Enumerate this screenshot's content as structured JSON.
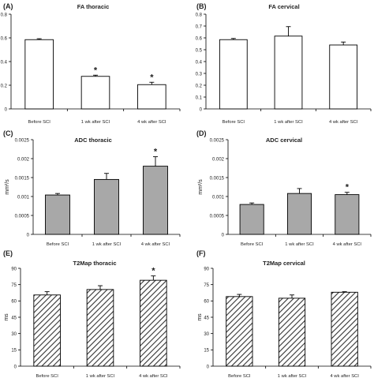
{
  "chart_data": [
    {
      "type": "bar",
      "panel_label": "(A)",
      "title": "FA thoracic",
      "ylabel": "",
      "categories": [
        "Before SCI",
        "1 wk after SCI",
        "4 wk after SCI"
      ],
      "values": [
        0.585,
        0.275,
        0.205
      ],
      "errors": [
        0.008,
        0.01,
        0.02
      ],
      "significance": [
        "",
        "*",
        "*"
      ],
      "ylim": [
        0,
        0.8
      ],
      "yticks": [
        "0",
        "0.2",
        "0.4",
        "0.6",
        "0.8"
      ],
      "fill": "white"
    },
    {
      "type": "bar",
      "panel_label": "(B)",
      "title": "FA cervical",
      "ylabel": "",
      "categories": [
        "Before SCI",
        "1 wk after SCI",
        "4 wk after SCI"
      ],
      "values": [
        0.585,
        0.615,
        0.54
      ],
      "errors": [
        0.01,
        0.08,
        0.025
      ],
      "significance": [
        "",
        "",
        ""
      ],
      "ylim": [
        0,
        0.8
      ],
      "yticks": [
        "0",
        "0.1",
        "0.2",
        "0.3",
        "0.4",
        "0.5",
        "0.6",
        "0.7",
        "0.8"
      ],
      "fill": "white"
    },
    {
      "type": "bar",
      "panel_label": "(C)",
      "title": "ADC thoracic",
      "ylabel": "mm²/s",
      "categories": [
        "Before SCI",
        "1 wk after SCI",
        "4 wk after SCI"
      ],
      "values": [
        0.00104,
        0.00145,
        0.0018
      ],
      "errors": [
        4e-05,
        0.00016,
        0.00025
      ],
      "significance": [
        "",
        "",
        "*"
      ],
      "ylim": [
        0,
        0.0025
      ],
      "yticks": [
        "0",
        "0.0005",
        "0.001",
        "0.0015",
        "0.002",
        "0.0025"
      ],
      "fill": "gray"
    },
    {
      "type": "bar",
      "panel_label": "(D)",
      "title": "ADC cervical",
      "ylabel": "mm²/s",
      "categories": [
        "Before SCI",
        "1 wk after SCI",
        "4 wk after SCI"
      ],
      "values": [
        0.00079,
        0.00108,
        0.00105
      ],
      "errors": [
        4e-05,
        0.00013,
        6e-05
      ],
      "significance": [
        "",
        "",
        "*"
      ],
      "ylim": [
        0,
        0.0025
      ],
      "yticks": [
        "0",
        "0.0005",
        "0.001",
        "0.0015",
        "0.002",
        "0.0025"
      ],
      "fill": "gray"
    },
    {
      "type": "bar",
      "panel_label": "(E)",
      "title": "T2Map thoracic",
      "ylabel": "ms",
      "categories": [
        "Before SCI",
        "1 wk after SCI",
        "4 wk after SCI"
      ],
      "values": [
        65.5,
        70.5,
        79
      ],
      "errors": [
        3,
        3.5,
        4
      ],
      "significance": [
        "",
        "",
        "*"
      ],
      "ylim": [
        0,
        90
      ],
      "yticks": [
        "0",
        "15",
        "30",
        "45",
        "60",
        "75",
        "90"
      ],
      "fill": "hatch"
    },
    {
      "type": "bar",
      "panel_label": "(F)",
      "title": "T2Map cervical",
      "ylabel": "ms",
      "categories": [
        "Before SCI",
        "1 wk after SCI",
        "4 wk after SCI"
      ],
      "values": [
        64,
        62.5,
        68
      ],
      "errors": [
        2,
        3,
        0.5
      ],
      "significance": [
        "",
        "",
        ""
      ],
      "ylim": [
        0,
        90
      ],
      "yticks": [
        "0",
        "15",
        "30",
        "45",
        "60",
        "75",
        "90"
      ],
      "fill": "hatch"
    }
  ],
  "colors": {
    "bar_gray": "#a8a8a8",
    "bar_white": "#ffffff",
    "stroke": "#000000",
    "hatch": "#333333"
  }
}
